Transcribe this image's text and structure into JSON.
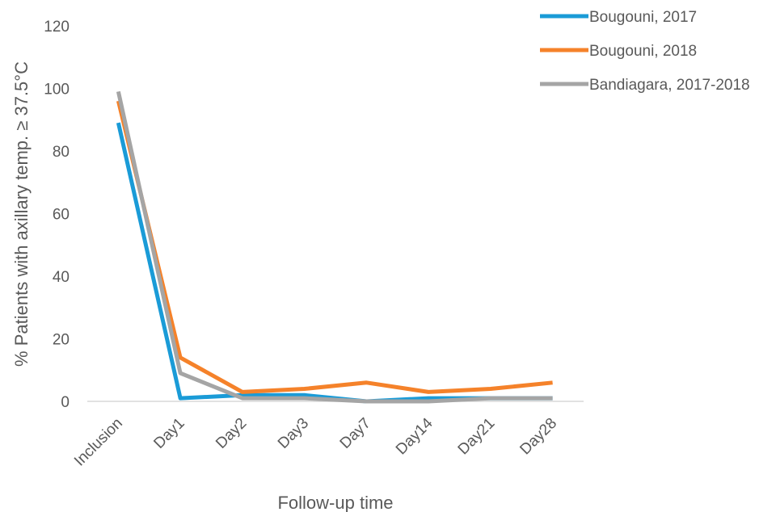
{
  "chart_data": {
    "type": "line",
    "title": "",
    "xlabel": "Follow-up time",
    "ylabel": "% Patients with axillary temp. ≥ 37.5°C",
    "categories": [
      "Inclusion",
      "Day1",
      "Day2",
      "Day3",
      "Day7",
      "Day14",
      "Day21",
      "Day28"
    ],
    "ylim": [
      0,
      120
    ],
    "yticks": [
      0,
      20,
      40,
      60,
      80,
      100,
      120
    ],
    "grid": false,
    "legend_position": "top-right",
    "series": [
      {
        "name": "Bougouni, 2017",
        "color": "#1a9bd7",
        "values": [
          89,
          1,
          2,
          2,
          0,
          1,
          1,
          1
        ]
      },
      {
        "name": "Bougouni, 2018",
        "color": "#f5822a",
        "values": [
          96,
          14,
          3,
          4,
          6,
          3,
          4,
          6
        ]
      },
      {
        "name": "Bandiagara, 2017-2018",
        "color": "#a5a5a5",
        "values": [
          99,
          9,
          1,
          1,
          0,
          0,
          1,
          1
        ]
      }
    ]
  }
}
